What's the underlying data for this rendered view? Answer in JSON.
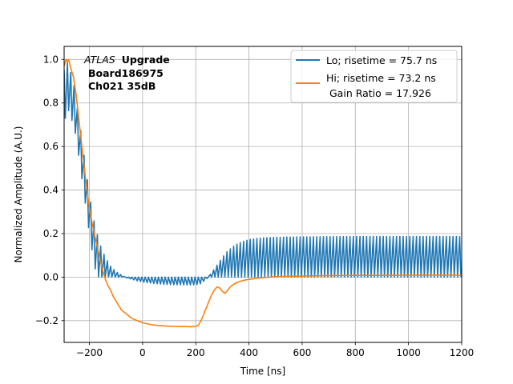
{
  "chart_data": {
    "type": "line",
    "xlabel": "Time [ns]",
    "ylabel": "Normalized Amplitude (A.U.)",
    "xlim": [
      -295,
      1200
    ],
    "ylim": [
      -0.3,
      1.06
    ],
    "xticks": [
      -200,
      0,
      200,
      400,
      600,
      800,
      1000,
      1200
    ],
    "xtick_labels": [
      "−200",
      "0",
      "200",
      "400",
      "600",
      "800",
      "1000",
      "1200"
    ],
    "yticks": [
      -0.2,
      0.0,
      0.2,
      0.4,
      0.6,
      0.8,
      1.0
    ],
    "ytick_labels": [
      "−0.2",
      "0.0",
      "0.2",
      "0.4",
      "0.6",
      "0.8",
      "1.0"
    ],
    "grid": true,
    "legend_position": "top-right",
    "annotation": {
      "italic": "ATLAS",
      "bold": "Upgrade",
      "line2": "Board186975",
      "line3": "Ch021 35dB"
    },
    "series": [
      {
        "name": "Lo; risetime = 75.7 ns",
        "color": "#1f77b4",
        "style": "oscillating between envelope and zero every 12.5 ns",
        "x": [
          -295,
          -285,
          -280,
          -260,
          -240,
          -220,
          -200,
          -180,
          -160,
          -140,
          -120,
          -100,
          -80,
          -60,
          -40,
          -20,
          0,
          20,
          40,
          60,
          80,
          100,
          120,
          140,
          160,
          180,
          200,
          220,
          240,
          260,
          280,
          300,
          320,
          340,
          360,
          380,
          400,
          420,
          440,
          460,
          480,
          500,
          550,
          600,
          700,
          800,
          900,
          1000,
          1100,
          1200
        ],
        "values": [
          0.95,
          0.99,
          0.98,
          0.9,
          0.74,
          0.56,
          0.38,
          0.24,
          0.15,
          0.09,
          0.05,
          0.025,
          0.01,
          -0.003,
          -0.01,
          -0.017,
          -0.022,
          -0.026,
          -0.029,
          -0.031,
          -0.033,
          -0.034,
          -0.035,
          -0.035,
          -0.036,
          -0.036,
          -0.035,
          -0.03,
          -0.01,
          0.02,
          0.055,
          0.09,
          0.12,
          0.14,
          0.155,
          0.165,
          0.172,
          0.176,
          0.179,
          0.181,
          0.182,
          0.183,
          0.184,
          0.185,
          0.186,
          0.187,
          0.187,
          0.187,
          0.187,
          0.187
        ]
      },
      {
        "name": "Hi; risetime = 73.2 ns",
        "label_line2": "Gain Ratio = 17.926",
        "color": "#ff7f0e",
        "x": [
          -295,
          -288,
          -283,
          -278,
          -270,
          -260,
          -250,
          -240,
          -230,
          -220,
          -210,
          -200,
          -190,
          -180,
          -170,
          -160,
          -150,
          -140,
          -130,
          -120,
          -110,
          -100,
          -90,
          -80,
          -60,
          -40,
          -20,
          0,
          20,
          40,
          60,
          80,
          100,
          120,
          140,
          160,
          180,
          200,
          210,
          220,
          230,
          240,
          250,
          260,
          270,
          280,
          290,
          300,
          310,
          320,
          330,
          340,
          350,
          360,
          380,
          400,
          420,
          440,
          460,
          480,
          500,
          550,
          600,
          700,
          800,
          900,
          1000,
          1100,
          1200
        ],
        "values": [
          0.97,
          1.0,
          0.99,
          1.0,
          0.96,
          0.92,
          0.84,
          0.73,
          0.62,
          0.51,
          0.41,
          0.32,
          0.25,
          0.19,
          0.14,
          0.08,
          0.03,
          -0.01,
          -0.04,
          -0.06,
          -0.09,
          -0.11,
          -0.13,
          -0.15,
          -0.17,
          -0.19,
          -0.2,
          -0.21,
          -0.215,
          -0.22,
          -0.222,
          -0.224,
          -0.226,
          -0.226,
          -0.227,
          -0.227,
          -0.228,
          -0.227,
          -0.22,
          -0.2,
          -0.17,
          -0.14,
          -0.11,
          -0.08,
          -0.06,
          -0.045,
          -0.05,
          -0.065,
          -0.075,
          -0.06,
          -0.045,
          -0.035,
          -0.028,
          -0.022,
          -0.015,
          -0.01,
          -0.007,
          -0.004,
          -0.002,
          0.0,
          0.002,
          0.004,
          0.005,
          0.007,
          0.008,
          0.008,
          0.009,
          0.009,
          0.009
        ]
      }
    ]
  }
}
